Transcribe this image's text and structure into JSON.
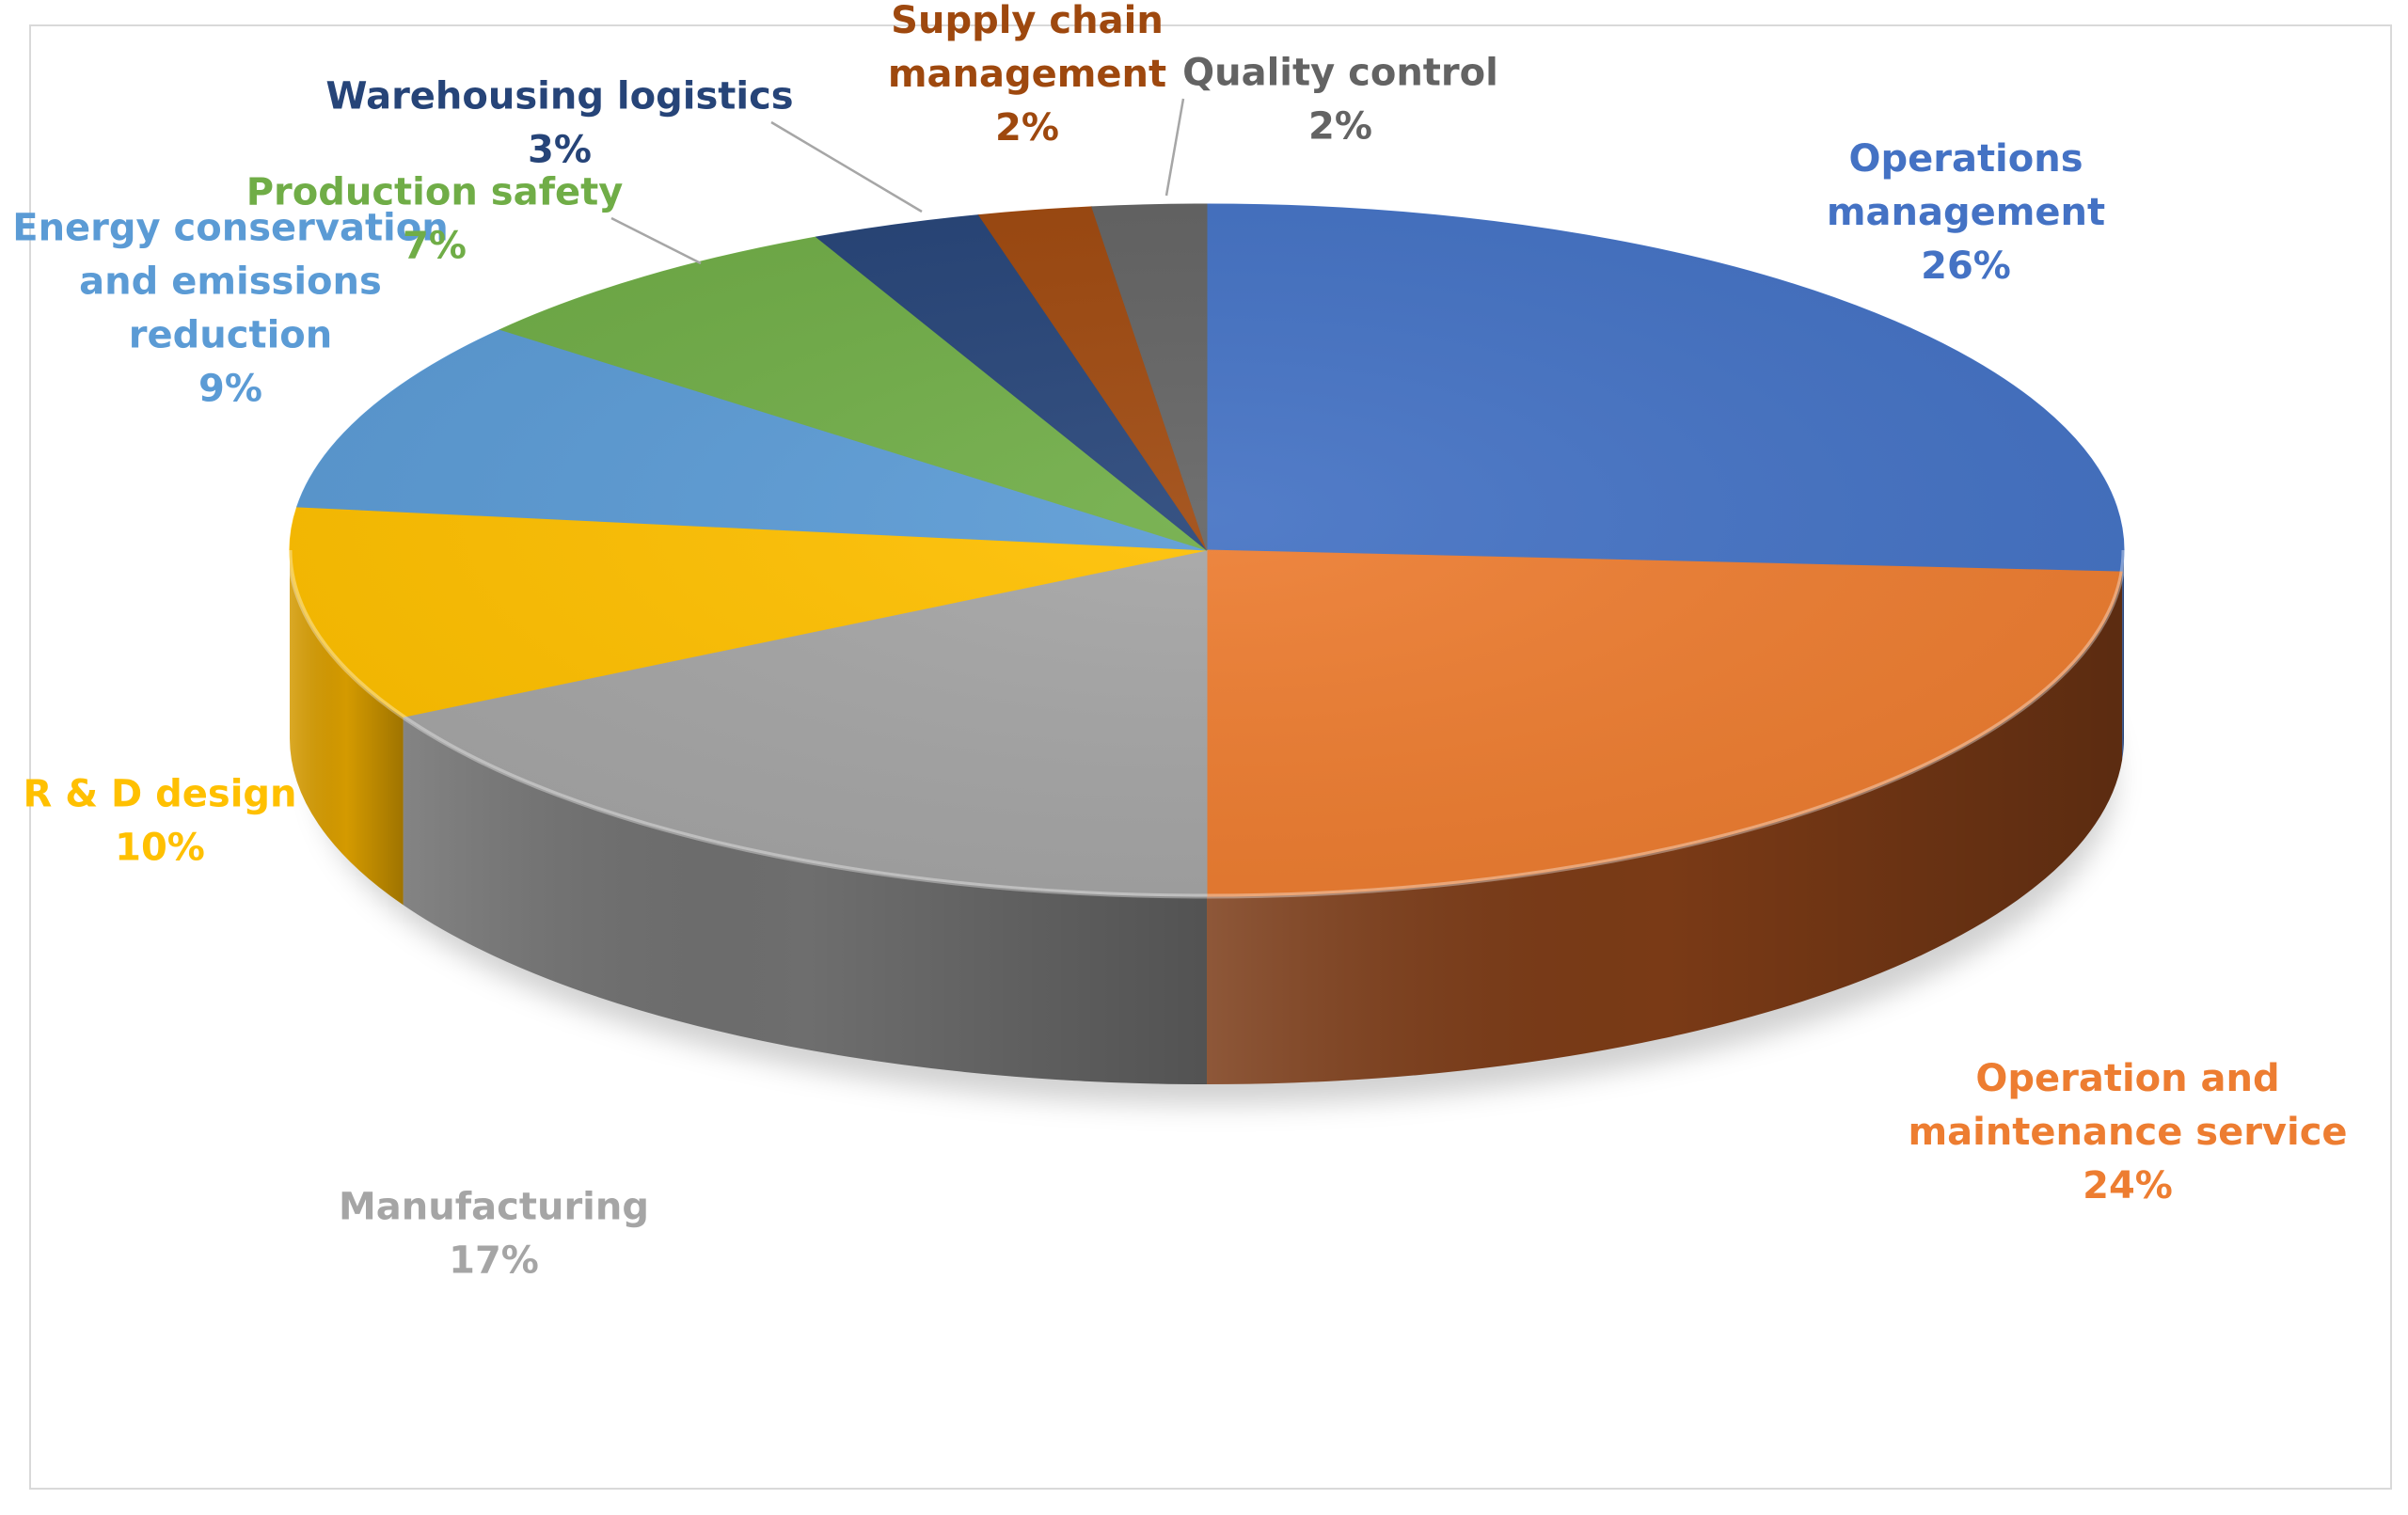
{
  "chart_data": {
    "type": "pie",
    "style": "3d",
    "title": "",
    "slices": [
      {
        "label_lines": [
          "Operations",
          "management"
        ],
        "percent_text": "26%",
        "value": 26,
        "color": "#4472C4",
        "side_color": "#2E4F8C",
        "label_color": "#4472C4"
      },
      {
        "label_lines": [
          "Operation and",
          "maintenance service"
        ],
        "percent_text": "24%",
        "value": 24,
        "color": "#ED7D31",
        "side_color": "#7A3A16",
        "label_color": "#ED7D31"
      },
      {
        "label_lines": [
          "Manufacturing"
        ],
        "percent_text": "17%",
        "value": 17,
        "color": "#A5A5A5",
        "side_color": "#6E6E6E",
        "label_color": "#A5A5A5"
      },
      {
        "label_lines": [
          "R & D design"
        ],
        "percent_text": "10%",
        "value": 10,
        "color": "#FFC000",
        "side_color": "#D49A00",
        "label_color": "#FFC000"
      },
      {
        "label_lines": [
          "Energy conservation",
          "and emissions",
          "reduction"
        ],
        "percent_text": "9%",
        "value": 9,
        "color": "#5B9BD5",
        "side_color": "#3C6E9C",
        "label_color": "#5B9BD5"
      },
      {
        "label_lines": [
          "Production safety"
        ],
        "percent_text": "7%",
        "value": 7,
        "color": "#70AD47",
        "side_color": "#4D7A30",
        "label_color": "#70AD47"
      },
      {
        "label_lines": [
          "Warehousing logistics"
        ],
        "percent_text": "3%",
        "value": 3,
        "color": "#264478",
        "side_color": "#16294A",
        "label_color": "#264478"
      },
      {
        "label_lines": [
          "Supply chain",
          "management"
        ],
        "percent_text": "2%",
        "value": 2,
        "color": "#9E480E",
        "side_color": "#5E2A08",
        "label_color": "#9E480E"
      },
      {
        "label_lines": [
          "Quality control"
        ],
        "percent_text": "2%",
        "value": 2,
        "color": "#636363",
        "side_color": "#3E3E3E",
        "label_color": "#636363"
      }
    ]
  }
}
